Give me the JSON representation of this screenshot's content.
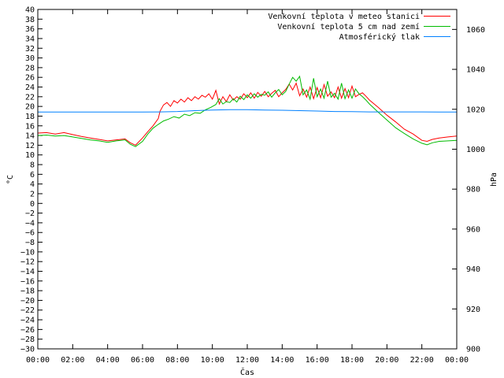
{
  "chart_data": {
    "type": "line",
    "xlabel": "Čas",
    "ylabel": "°C",
    "y2label": "hPa",
    "x_ticks": [
      "00:00",
      "02:00",
      "04:00",
      "06:00",
      "08:00",
      "10:00",
      "12:00",
      "14:00",
      "16:00",
      "18:00",
      "20:00",
      "22:00",
      "00:00"
    ],
    "xlim_hours": [
      0,
      24
    ],
    "ylim": [
      -30,
      40
    ],
    "y_ticks": [
      40,
      38,
      36,
      34,
      32,
      30,
      28,
      26,
      24,
      22,
      20,
      18,
      16,
      14,
      12,
      10,
      8,
      6,
      4,
      2,
      0,
      -2,
      -4,
      -6,
      -8,
      -10,
      -12,
      -14,
      -16,
      -18,
      -20,
      -22,
      -24,
      -26,
      -28,
      -30
    ],
    "y2lim": [
      900,
      1070
    ],
    "y2_ticks": [
      1060,
      1040,
      1020,
      1000,
      980,
      960,
      940,
      920,
      900
    ],
    "legend_position": "top-right",
    "colors": {
      "station": "#ff0000",
      "ground": "#00bb00",
      "pressure": "#0080ff"
    },
    "series": [
      {
        "name": "Venkovní teplota v meteo stanici",
        "axis": "left",
        "x": [
          0,
          0.5,
          1,
          1.5,
          2,
          2.5,
          3,
          3.5,
          4,
          4.5,
          5,
          5.3,
          5.6,
          6,
          6.3,
          6.6,
          6.9,
          7.0,
          7.2,
          7.4,
          7.6,
          7.8,
          8,
          8.2,
          8.4,
          8.6,
          8.8,
          9,
          9.2,
          9.4,
          9.6,
          9.8,
          10,
          10.2,
          10.4,
          10.6,
          10.8,
          11,
          11.2,
          11.4,
          11.6,
          11.8,
          12,
          12.2,
          12.4,
          12.6,
          12.8,
          13,
          13.2,
          13.4,
          13.6,
          13.8,
          14,
          14.2,
          14.4,
          14.6,
          14.8,
          15,
          15.2,
          15.4,
          15.6,
          15.8,
          16,
          16.2,
          16.4,
          16.6,
          16.8,
          17,
          17.2,
          17.4,
          17.6,
          17.8,
          18,
          18.2,
          18.4,
          18.6,
          18.8,
          19,
          19.5,
          20,
          20.5,
          21,
          21.5,
          22,
          22.3,
          22.6,
          23,
          23.5,
          24
        ],
        "values": [
          14.5,
          14.6,
          14.3,
          14.6,
          14.2,
          13.8,
          13.5,
          13.2,
          12.9,
          13.1,
          13.3,
          12.5,
          12.0,
          13.5,
          14.8,
          16.0,
          17.5,
          19.0,
          20.3,
          20.8,
          20.0,
          21.2,
          20.7,
          21.5,
          20.9,
          21.8,
          21.2,
          22.0,
          21.5,
          22.3,
          21.9,
          22.6,
          21.5,
          23.3,
          20.5,
          22.0,
          21.0,
          22.4,
          21.3,
          22.0,
          21.5,
          22.6,
          21.8,
          22.8,
          21.7,
          22.9,
          22.1,
          23.1,
          22.0,
          22.7,
          23.3,
          22.0,
          22.8,
          23.5,
          24.6,
          23.4,
          24.8,
          22.2,
          23.6,
          21.9,
          24.0,
          21.6,
          23.9,
          21.8,
          24.5,
          22.1,
          23.0,
          21.8,
          24.0,
          21.7,
          23.7,
          21.8,
          24.2,
          22.0,
          22.5,
          22.8,
          22.1,
          21.3,
          19.8,
          18.2,
          16.8,
          15.3,
          14.3,
          13.0,
          12.8,
          13.2,
          13.5,
          13.7,
          13.9
        ]
      },
      {
        "name": "Venkovní teplota 5 cm nad zemí",
        "axis": "left",
        "x": [
          0,
          0.5,
          1,
          1.5,
          2,
          2.5,
          3,
          3.5,
          4,
          4.5,
          5,
          5.3,
          5.6,
          6,
          6.3,
          6.6,
          6.9,
          7.2,
          7.5,
          7.8,
          8.1,
          8.4,
          8.7,
          9,
          9.3,
          9.6,
          9.9,
          10.2,
          10.4,
          10.6,
          10.8,
          11,
          11.2,
          11.4,
          11.6,
          11.8,
          12,
          12.2,
          12.4,
          12.6,
          12.8,
          13,
          13.2,
          13.4,
          13.6,
          13.8,
          14,
          14.2,
          14.4,
          14.6,
          14.8,
          15,
          15.2,
          15.4,
          15.6,
          15.8,
          16,
          16.2,
          16.4,
          16.6,
          16.8,
          17,
          17.2,
          17.4,
          17.6,
          17.8,
          18,
          18.2,
          18.4,
          18.6,
          18.8,
          19,
          19.5,
          20,
          20.5,
          21,
          21.5,
          22,
          22.3,
          22.6,
          23,
          23.5,
          24
        ],
        "values": [
          14.0,
          14.1,
          13.9,
          14.0,
          13.7,
          13.4,
          13.1,
          12.9,
          12.6,
          12.9,
          13.1,
          12.2,
          11.7,
          12.8,
          14.3,
          15.5,
          16.3,
          17.0,
          17.4,
          17.9,
          17.6,
          18.4,
          18.1,
          18.7,
          18.6,
          19.3,
          19.8,
          20.4,
          21.6,
          20.5,
          21.0,
          20.8,
          21.6,
          20.9,
          22.1,
          21.4,
          22.4,
          21.7,
          22.6,
          21.9,
          22.5,
          22.3,
          23.0,
          21.9,
          22.8,
          23.5,
          22.4,
          23.1,
          24.6,
          26.0,
          25.2,
          26.2,
          22.4,
          23.4,
          21.5,
          25.8,
          22.0,
          23.6,
          21.7,
          25.2,
          21.9,
          22.7,
          21.5,
          24.8,
          21.6,
          23.4,
          21.7,
          23.6,
          22.6,
          22.0,
          21.3,
          20.5,
          18.8,
          17.2,
          15.6,
          14.4,
          13.3,
          12.4,
          12.1,
          12.5,
          12.8,
          12.9,
          13.0
        ]
      },
      {
        "name": "Atmosférický tlak",
        "axis": "right",
        "x": [
          0,
          2,
          4,
          6,
          7,
          8,
          9,
          10,
          11,
          12,
          13,
          14,
          15,
          16,
          17,
          18,
          19,
          20,
          21,
          22,
          23,
          24
        ],
        "values": [
          1018.6,
          1018.6,
          1018.6,
          1018.6,
          1018.7,
          1018.9,
          1019.3,
          1019.6,
          1019.8,
          1019.8,
          1019.6,
          1019.5,
          1019.3,
          1019.1,
          1018.9,
          1018.8,
          1018.7,
          1018.7,
          1018.7,
          1018.7,
          1018.6,
          1018.6
        ]
      }
    ]
  }
}
